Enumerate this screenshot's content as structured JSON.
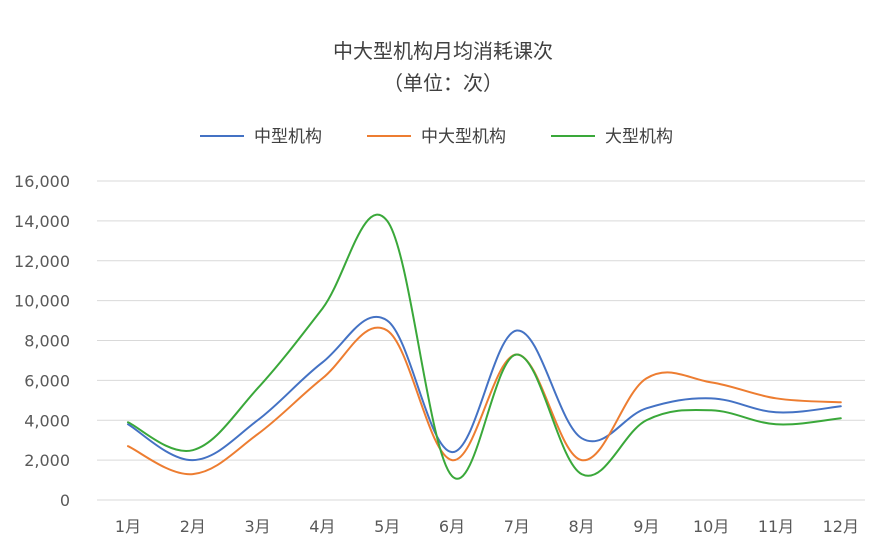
{
  "chart_data": {
    "type": "line",
    "title": "中大型机构月均消耗课次",
    "subtitle": "（单位：次）",
    "xlabel": "",
    "ylabel": "",
    "categories": [
      "1月",
      "2月",
      "3月",
      "4月",
      "5月",
      "6月",
      "7月",
      "8月",
      "9月",
      "10月",
      "11月",
      "12月"
    ],
    "ylim": [
      0,
      16000
    ],
    "yticks": [
      0,
      2000,
      4000,
      6000,
      8000,
      10000,
      12000,
      14000,
      16000
    ],
    "ytick_labels": [
      "0",
      "2,000",
      "4,000",
      "6,000",
      "8,000",
      "10,000",
      "12,000",
      "14,000",
      "16,000"
    ],
    "grid": true,
    "legend_position": "top",
    "series": [
      {
        "name": "中型机构",
        "color": "#4472c4",
        "values": [
          3800,
          2000,
          4000,
          6900,
          9000,
          2400,
          8500,
          3100,
          4600,
          5100,
          4400,
          4700
        ]
      },
      {
        "name": "中大型机构",
        "color": "#ed7d31",
        "values": [
          2700,
          1300,
          3300,
          6100,
          8500,
          2000,
          7300,
          2000,
          6100,
          5900,
          5100,
          4900
        ]
      },
      {
        "name": "大型机构",
        "color": "#3aa83a",
        "values": [
          3900,
          2500,
          5600,
          9600,
          14000,
          1200,
          7300,
          1300,
          4000,
          4500,
          3800,
          4100
        ]
      }
    ]
  }
}
